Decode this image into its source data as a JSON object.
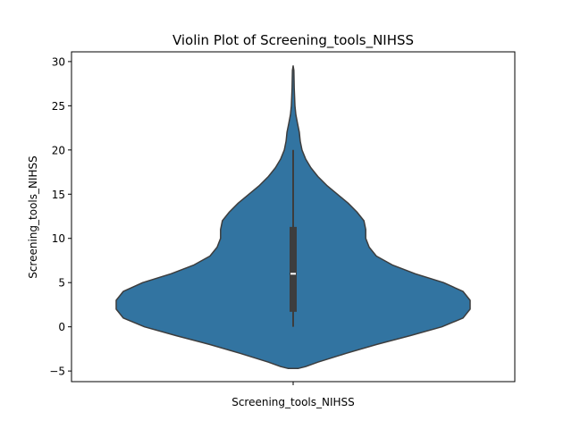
{
  "chart_data": {
    "type": "violin",
    "title": "Violin Plot of Screening_tools_NIHSS",
    "xlabel": "Screening_tools_NIHSS",
    "ylabel": "Screening_tools_NIHSS",
    "ylim": [
      -6.2,
      31.1
    ],
    "y_ticks": [
      -5,
      0,
      5,
      10,
      15,
      20,
      25,
      30
    ],
    "category": "Screening_tools_NIHSS",
    "colors": {
      "fill": "#3274a1",
      "edge": "#3d3d3d",
      "box": "#3d3d3d",
      "median": "#ffffff"
    },
    "summary": {
      "whisker_low": 0,
      "q1": 1.7,
      "median": 6,
      "q3": 11.3,
      "whisker_high": 20
    },
    "density_profile": [
      {
        "y": -4.7,
        "width": 0.03
      },
      {
        "y": -4.5,
        "width": 0.07
      },
      {
        "y": -4.0,
        "width": 0.14
      },
      {
        "y": -3.0,
        "width": 0.3
      },
      {
        "y": -2.0,
        "width": 0.47
      },
      {
        "y": -1.0,
        "width": 0.66
      },
      {
        "y": 0.0,
        "width": 0.84
      },
      {
        "y": 1.0,
        "width": 0.96
      },
      {
        "y": 2.0,
        "width": 1.0
      },
      {
        "y": 3.0,
        "width": 1.0
      },
      {
        "y": 4.0,
        "width": 0.96
      },
      {
        "y": 5.0,
        "width": 0.85
      },
      {
        "y": 6.0,
        "width": 0.69
      },
      {
        "y": 7.0,
        "width": 0.56
      },
      {
        "y": 8.0,
        "width": 0.47
      },
      {
        "y": 9.0,
        "width": 0.43
      },
      {
        "y": 10.0,
        "width": 0.41
      },
      {
        "y": 11.0,
        "width": 0.41
      },
      {
        "y": 12.0,
        "width": 0.4
      },
      {
        "y": 13.0,
        "width": 0.36
      },
      {
        "y": 14.0,
        "width": 0.31
      },
      {
        "y": 15.0,
        "width": 0.25
      },
      {
        "y": 16.0,
        "width": 0.19
      },
      {
        "y": 17.0,
        "width": 0.14
      },
      {
        "y": 18.0,
        "width": 0.1
      },
      {
        "y": 19.0,
        "width": 0.07
      },
      {
        "y": 20.0,
        "width": 0.05
      },
      {
        "y": 21.0,
        "width": 0.04
      },
      {
        "y": 22.0,
        "width": 0.035
      },
      {
        "y": 23.0,
        "width": 0.025
      },
      {
        "y": 24.0,
        "width": 0.015
      },
      {
        "y": 25.0,
        "width": 0.01
      },
      {
        "y": 26.0,
        "width": 0.008
      },
      {
        "y": 27.0,
        "width": 0.006
      },
      {
        "y": 28.0,
        "width": 0.005
      },
      {
        "y": 29.0,
        "width": 0.004
      },
      {
        "y": 29.5,
        "width": 0.0
      }
    ],
    "grid": false,
    "legend": "none"
  }
}
